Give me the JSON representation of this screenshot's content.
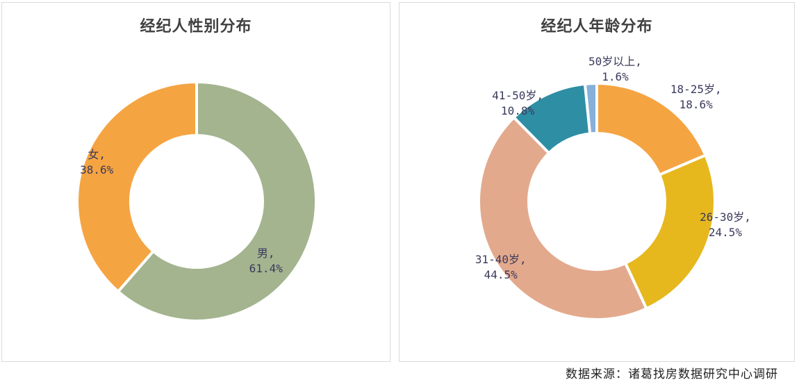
{
  "chart_data": [
    {
      "type": "pie",
      "title": "经纪人性别分布",
      "categories": [
        "男",
        "女"
      ],
      "values": [
        61.4,
        38.6
      ],
      "value_labels": [
        "61.4%",
        "38.6%"
      ],
      "colors": [
        "#a3b48f",
        "#f5a442"
      ]
    },
    {
      "type": "pie",
      "title": "经纪人年龄分布",
      "categories": [
        "18-25岁",
        "26-30岁",
        "31-40岁",
        "41-50岁",
        "50岁以上"
      ],
      "values": [
        18.6,
        24.5,
        44.5,
        10.8,
        1.6
      ],
      "value_labels": [
        "18.6%",
        "24.5%",
        "44.5%",
        "10.8%",
        "1.6%"
      ],
      "colors": [
        "#f5a442",
        "#e6b81e",
        "#e3a98c",
        "#2e8ea4",
        "#86b0d8"
      ]
    }
  ],
  "footer": {
    "source": "数据来源：诸葛找房数据研究中心调研"
  }
}
